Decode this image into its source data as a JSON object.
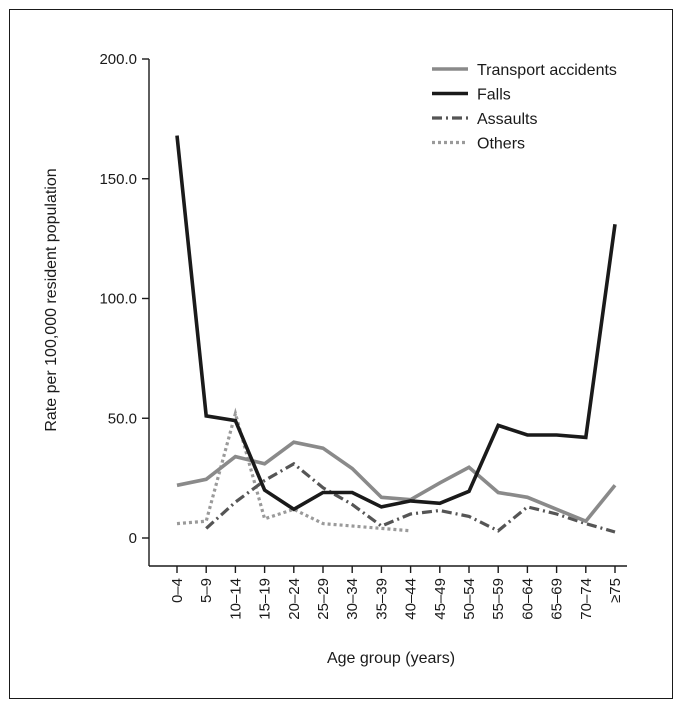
{
  "chart_data": {
    "type": "line",
    "xlabel": "Age group (years)",
    "ylabel": "Rate per 100,000 resident population",
    "ylim": [
      0,
      200
    ],
    "yticks": [
      "0",
      "50.0",
      "100.0",
      "150.0",
      "200.0"
    ],
    "ytick_values": [
      0,
      50,
      100,
      150,
      200
    ],
    "categories": [
      "0–4",
      "5–9",
      "10–14",
      "15–19",
      "20–24",
      "25–29",
      "30–34",
      "35–39",
      "40–44",
      "45–49",
      "50–54",
      "55–59",
      "60–64",
      "65–69",
      "70–74",
      "≥75"
    ],
    "legend_position": "top-right",
    "series": [
      {
        "name": "Transport accidents",
        "color": "#8a8a8a",
        "style": "solid",
        "values": [
          22,
          24.5,
          34,
          31,
          40,
          37.5,
          29,
          17,
          16,
          23,
          29.5,
          19,
          17,
          12,
          7,
          22
        ]
      },
      {
        "name": "Falls",
        "color": "#1a1a1a",
        "style": "solid",
        "values": [
          168,
          51,
          49,
          20,
          12,
          19,
          19,
          13,
          15.5,
          14.5,
          19.5,
          47,
          43,
          43,
          42,
          131
        ]
      },
      {
        "name": "Assaults",
        "color": "#555555",
        "style": "dashdot",
        "values": [
          null,
          4,
          15,
          24,
          31,
          21,
          14,
          5,
          10,
          11.5,
          9,
          3,
          13,
          10,
          6,
          2.5
        ]
      },
      {
        "name": "Others",
        "color": "#9a9a9a",
        "style": "dotted",
        "values": [
          6,
          7,
          52,
          8,
          12,
          6,
          5,
          4,
          3,
          null,
          3,
          null,
          null,
          null,
          null,
          null
        ]
      }
    ]
  }
}
